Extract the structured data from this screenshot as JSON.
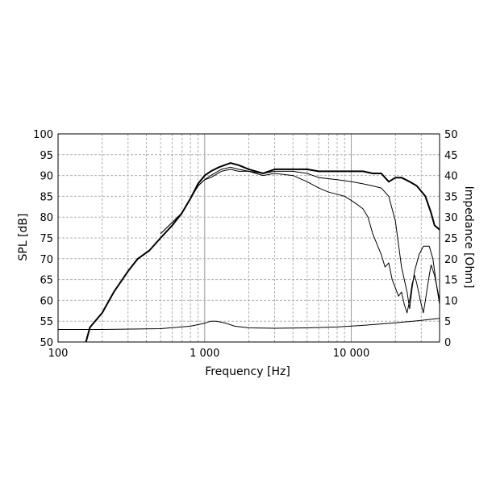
{
  "chart_data": {
    "type": "line",
    "xlabel": "Frequency [Hz]",
    "ylabel": "SPL [dB]",
    "y2label": "Impedance [Ohm]",
    "xscale": "log",
    "xlim": [
      100,
      40000
    ],
    "ylim": [
      50,
      100
    ],
    "y2lim": [
      0,
      50
    ],
    "grid": true,
    "x_tick_labels": [
      {
        "value": 100,
        "label": "100"
      },
      {
        "value": 1000,
        "label": "1 000"
      },
      {
        "value": 10000,
        "label": "10 000"
      }
    ],
    "y_ticks": [
      50,
      55,
      60,
      65,
      70,
      75,
      80,
      85,
      90,
      95,
      100
    ],
    "y2_ticks": [
      0,
      5,
      10,
      15,
      20,
      25,
      30,
      35,
      40,
      45,
      50
    ],
    "series": [
      {
        "axis": "left",
        "color": "#000000",
        "weight": "bold",
        "points": [
          [
            155,
            50
          ],
          [
            165,
            53.5
          ],
          [
            200,
            57
          ],
          [
            240,
            62
          ],
          [
            300,
            67
          ],
          [
            350,
            70
          ],
          [
            420,
            72
          ],
          [
            500,
            75
          ],
          [
            600,
            78
          ],
          [
            700,
            81
          ],
          [
            800,
            84.5
          ],
          [
            900,
            88
          ],
          [
            1000,
            90
          ],
          [
            1100,
            91
          ],
          [
            1250,
            92
          ],
          [
            1500,
            93
          ],
          [
            1700,
            92.5
          ],
          [
            2000,
            91.5
          ],
          [
            2500,
            90.5
          ],
          [
            3000,
            91.5
          ],
          [
            3500,
            91.5
          ],
          [
            4000,
            91.5
          ],
          [
            5000,
            91.5
          ],
          [
            6000,
            91
          ],
          [
            8000,
            91
          ],
          [
            10000,
            91
          ],
          [
            12000,
            91
          ],
          [
            14000,
            90.5
          ],
          [
            16000,
            90.5
          ],
          [
            18000,
            88.5
          ],
          [
            20000,
            89.5
          ],
          [
            22000,
            89.5
          ],
          [
            25000,
            88.5
          ],
          [
            28000,
            87.5
          ],
          [
            32000,
            85
          ],
          [
            35000,
            81
          ],
          [
            37000,
            78
          ],
          [
            40000,
            77
          ]
        ]
      },
      {
        "axis": "left",
        "color": "#000000",
        "weight": "thin",
        "points": [
          [
            500,
            76
          ],
          [
            700,
            81
          ],
          [
            900,
            87.5
          ],
          [
            1000,
            89
          ],
          [
            1100,
            90
          ],
          [
            1300,
            91.5
          ],
          [
            1500,
            92
          ],
          [
            1700,
            91.5
          ],
          [
            2000,
            91
          ],
          [
            2500,
            90.5
          ],
          [
            3000,
            91
          ],
          [
            4000,
            91
          ],
          [
            5000,
            90.5
          ],
          [
            6000,
            89.5
          ],
          [
            8000,
            89
          ],
          [
            10000,
            88.5
          ],
          [
            12000,
            88
          ],
          [
            14000,
            87.5
          ],
          [
            16000,
            87
          ],
          [
            18000,
            85
          ],
          [
            20000,
            79
          ],
          [
            22000,
            68
          ],
          [
            24000,
            62
          ],
          [
            25000,
            58
          ],
          [
            26000,
            63
          ],
          [
            27000,
            67
          ],
          [
            29000,
            71
          ],
          [
            31000,
            73
          ],
          [
            34000,
            73
          ],
          [
            36000,
            70
          ],
          [
            38000,
            64
          ],
          [
            40000,
            59
          ]
        ]
      },
      {
        "axis": "left",
        "color": "#000000",
        "weight": "thin",
        "points": [
          [
            500,
            76
          ],
          [
            700,
            81
          ],
          [
            900,
            87.5
          ],
          [
            1000,
            89
          ],
          [
            1100,
            89.5
          ],
          [
            1300,
            91
          ],
          [
            1500,
            91.5
          ],
          [
            1700,
            91
          ],
          [
            2000,
            91
          ],
          [
            2500,
            90
          ],
          [
            3000,
            90.5
          ],
          [
            4000,
            90
          ],
          [
            5000,
            88.5
          ],
          [
            6000,
            87
          ],
          [
            7000,
            86
          ],
          [
            8000,
            85.5
          ],
          [
            9000,
            85
          ],
          [
            10000,
            84
          ],
          [
            11000,
            83
          ],
          [
            12000,
            82
          ],
          [
            13000,
            80
          ],
          [
            14000,
            76
          ],
          [
            16000,
            71
          ],
          [
            17000,
            68
          ],
          [
            18000,
            69
          ],
          [
            19000,
            65
          ],
          [
            21000,
            61
          ],
          [
            22000,
            62
          ],
          [
            23000,
            59
          ],
          [
            24000,
            57
          ],
          [
            25000,
            60
          ],
          [
            26000,
            64
          ],
          [
            27000,
            66
          ],
          [
            28000,
            64
          ],
          [
            30000,
            59
          ],
          [
            31000,
            57
          ],
          [
            32000,
            60
          ],
          [
            34000,
            66
          ],
          [
            35000,
            68.5
          ],
          [
            37000,
            66
          ],
          [
            40000,
            60
          ]
        ]
      },
      {
        "axis": "right",
        "color": "#000000",
        "weight": "thin",
        "points": [
          [
            100,
            3
          ],
          [
            200,
            3
          ],
          [
            500,
            3.2
          ],
          [
            800,
            3.8
          ],
          [
            1000,
            4.5
          ],
          [
            1100,
            5
          ],
          [
            1200,
            5
          ],
          [
            1400,
            4.5
          ],
          [
            1600,
            3.8
          ],
          [
            2000,
            3.4
          ],
          [
            3000,
            3.3
          ],
          [
            5000,
            3.4
          ],
          [
            8000,
            3.6
          ],
          [
            12000,
            4
          ],
          [
            20000,
            4.6
          ],
          [
            30000,
            5.2
          ],
          [
            40000,
            5.7
          ]
        ]
      }
    ]
  }
}
